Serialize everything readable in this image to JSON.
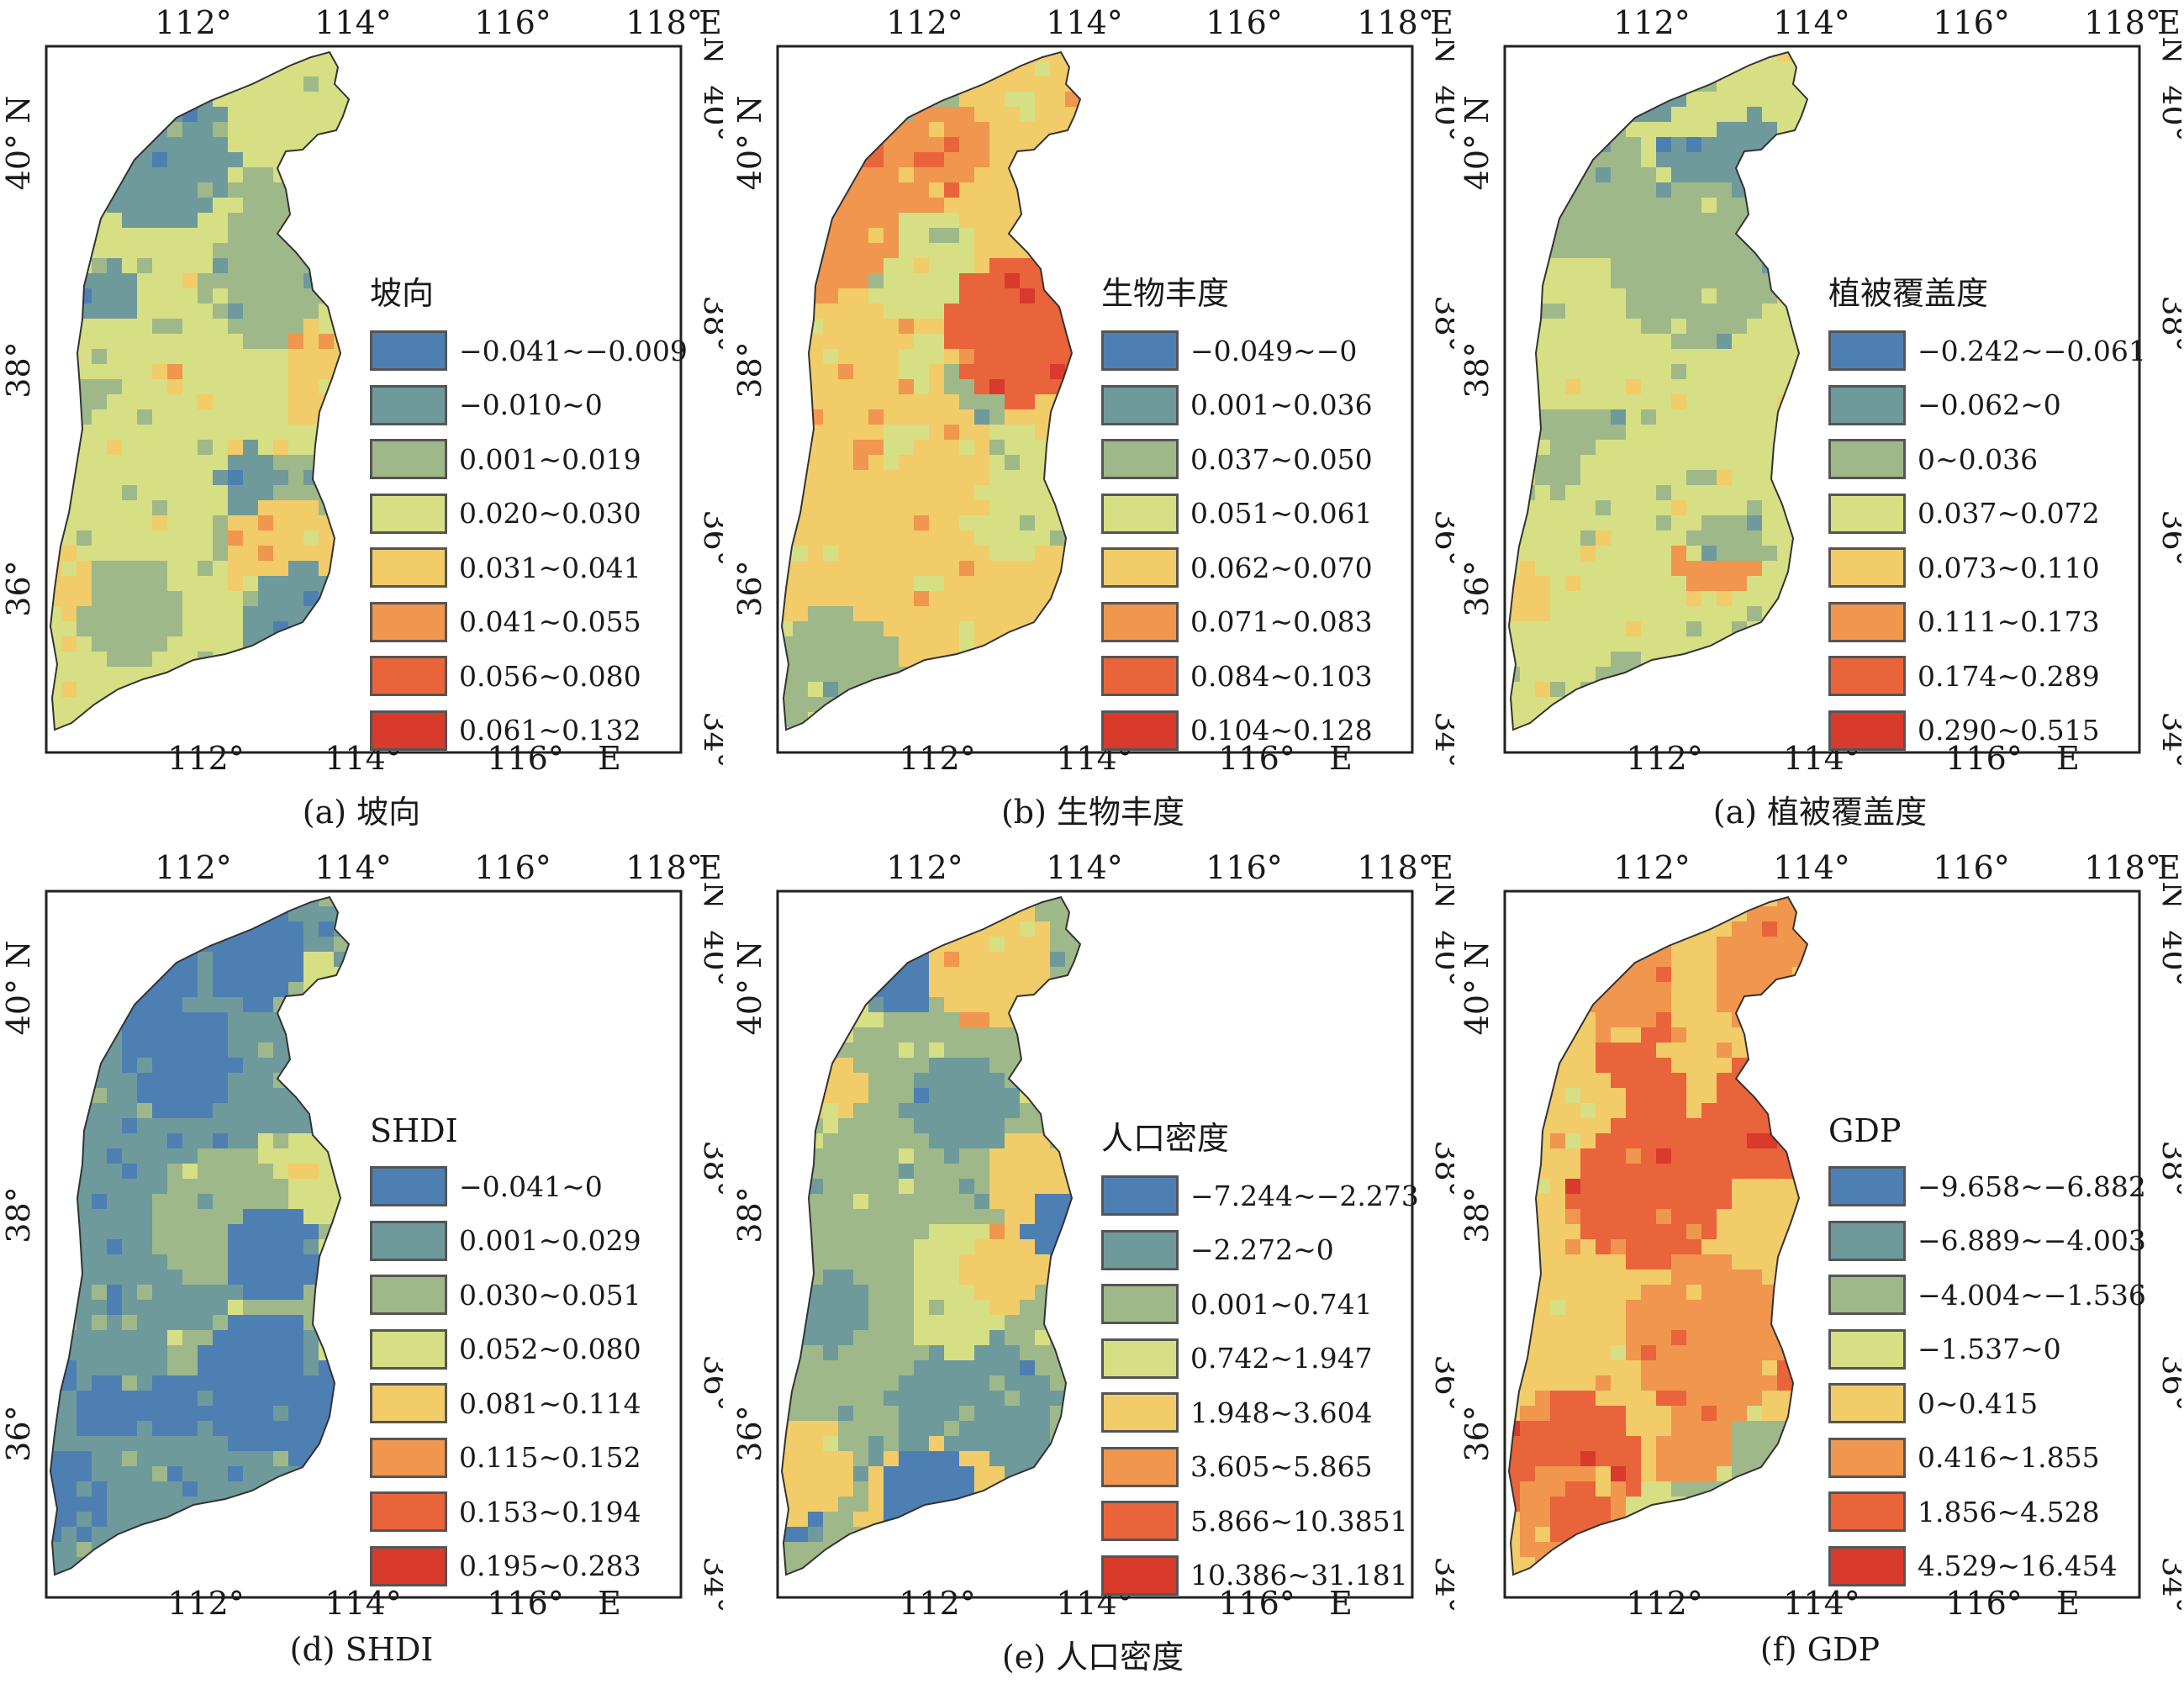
{
  "colors": [
    "#4e7fb3",
    "#6e9a9c",
    "#9eb88a",
    "#d6df83",
    "#f1cc68",
    "#f0964e",
    "#e9643a",
    "#d83a2c"
  ],
  "axes": {
    "top_ticks": [
      "112°",
      "114°",
      "116°",
      "118°",
      "E"
    ],
    "bottom_ticks": [
      "112°",
      "114°",
      "116°",
      "E"
    ],
    "left_ticks": [
      "40° N",
      "38°",
      "36°"
    ],
    "right_ticks": [
      "N",
      "40°",
      "38°",
      "36°",
      "34°"
    ]
  },
  "panels": [
    {
      "caption": "(a) 坡向",
      "legend_title": "坡向",
      "classes": [
        "−0.041~−0.009",
        "−0.010~0",
        "0.001~0.019",
        "0.020~0.030",
        "0.031~0.041",
        "0.041~0.055",
        "0.056~0.080",
        "0.061~0.132"
      ],
      "base_class": 3
    },
    {
      "caption": "(b) 生物丰度",
      "legend_title": "生物丰度",
      "classes": [
        "−0.049~−0",
        "0.001~0.036",
        "0.037~0.050",
        "0.051~0.061",
        "0.062~0.070",
        "0.071~0.083",
        "0.084~0.103",
        "0.104~0.128"
      ],
      "base_class": 4
    },
    {
      "caption": "(a) 植被覆盖度",
      "legend_title": "植被覆盖度",
      "classes": [
        "−0.242~−0.061",
        "−0.062~0",
        "0~0.036",
        "0.037~0.072",
        "0.073~0.110",
        "0.111~0.173",
        "0.174~0.289",
        "0.290~0.515"
      ],
      "base_class": 3
    },
    {
      "caption": "(d) SHDI",
      "legend_title": "SHDI",
      "classes": [
        "−0.041~0",
        "0.001~0.029",
        "0.030~0.051",
        "0.052~0.080",
        "0.081~0.114",
        "0.115~0.152",
        "0.153~0.194",
        "0.195~0.283"
      ],
      "base_class": 1
    },
    {
      "caption": "(e) 人口密度",
      "legend_title": "人口密度",
      "classes": [
        "−7.244~−2.273",
        "−2.272~0",
        "0.001~0.741",
        "0.742~1.947",
        "1.948~3.604",
        "3.605~5.865",
        "5.866~10.3851",
        "10.386~31.181"
      ],
      "base_class": 2
    },
    {
      "caption": "(f) GDP",
      "legend_title": "GDP",
      "classes": [
        "−9.658~−6.882",
        "−6.889~−4.003",
        "−4.004~−1.536",
        "−1.537~0",
        "0~0.415",
        "0.416~1.855",
        "1.856~4.528",
        "4.529~16.454"
      ],
      "base_class": 4
    }
  ]
}
